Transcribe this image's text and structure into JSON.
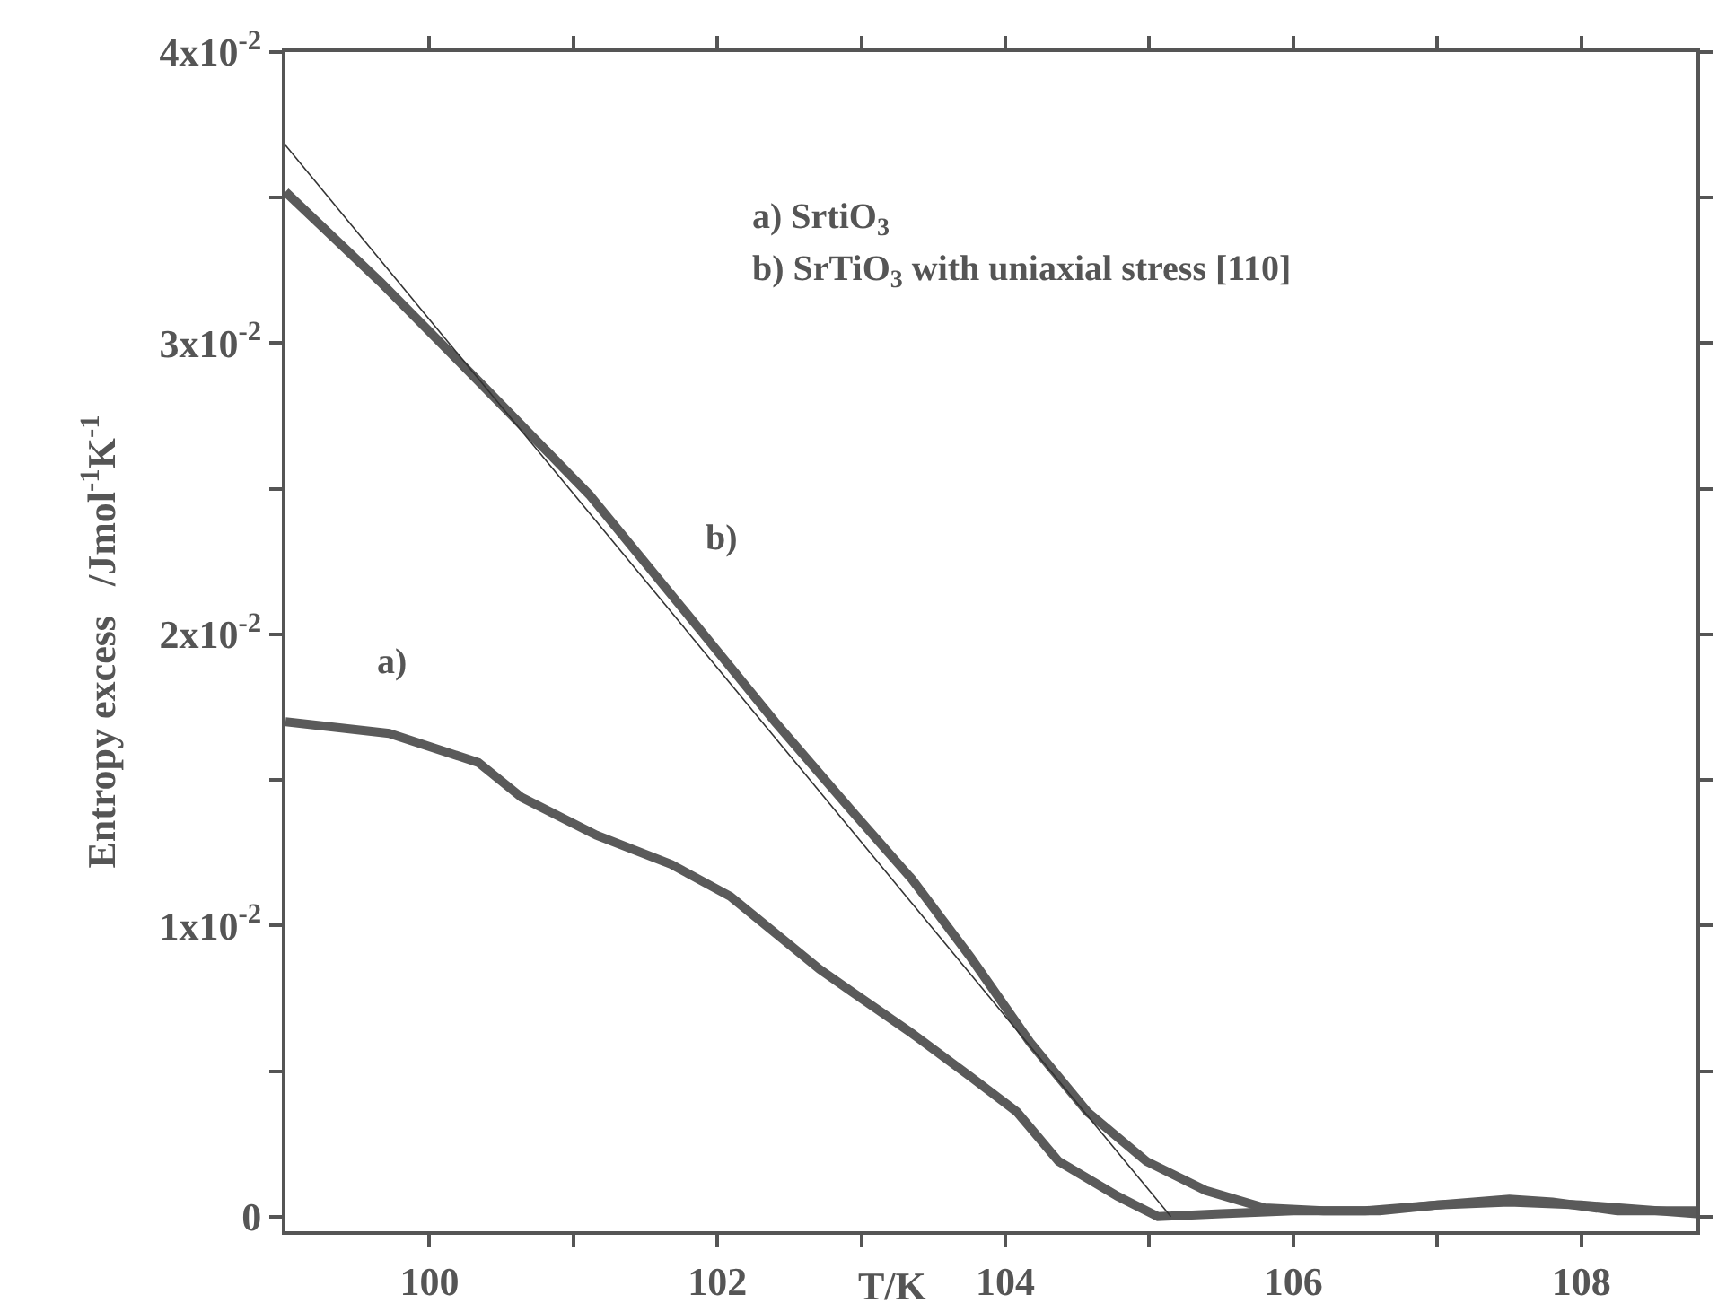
{
  "chart_data": {
    "type": "line",
    "xlabel": "T/K",
    "ylabel": "Entropy excess   /Jmol$^{-1}$K$^{-1}$",
    "xlim": [
      99,
      108.8
    ],
    "xticks": [
      100,
      {
        "value": 101,
        "label": null
      },
      102,
      {
        "value": 103,
        "label": null
      },
      104,
      {
        "value": 105,
        "label": null
      },
      106,
      {
        "value": 107,
        "label": null
      },
      108
    ],
    "ylim": [
      -0.0005,
      0.04
    ],
    "yticks": [
      {
        "value": 0,
        "label": "0"
      },
      {
        "value": 0.005,
        "label": null
      },
      {
        "value": 0.01,
        "label": "1x10$^{-2}$"
      },
      {
        "value": 0.015,
        "label": null
      },
      {
        "value": 0.02,
        "label": "2x10$^{-2}$"
      },
      {
        "value": 0.025,
        "label": null
      },
      {
        "value": 0.03,
        "label": "3x10$^{-2}$"
      },
      {
        "value": 0.035,
        "label": null
      },
      {
        "value": 0.04,
        "label": "4x10$^{-2}$"
      }
    ],
    "marker": "none",
    "series": [
      {
        "color": "#5a5a5a",
        "x": [
          99.0,
          99.72,
          100.34,
          100.64,
          101.16,
          101.68,
          102.09,
          102.71,
          102.94,
          103.35,
          103.76,
          104.08,
          104.37,
          104.78,
          105.06,
          105.5,
          106.0,
          106.5,
          107.0,
          107.5,
          108.0,
          108.8
        ],
        "values": [
          0.017,
          0.0166,
          0.0156,
          0.0144,
          0.0131,
          0.0121,
          0.011,
          0.0085,
          0.0077,
          0.0063,
          0.0048,
          0.0036,
          0.0019,
          0.0007,
          0.0,
          0.0001,
          0.0002,
          0.0002,
          0.0004,
          0.0005,
          0.0004,
          0.0001
        ]
      },
      {
        "color": "#5a5a5a",
        "x": [
          99.0,
          99.66,
          100.34,
          101.11,
          101.79,
          102.4,
          102.94,
          103.35,
          103.76,
          104.17,
          104.57,
          104.98,
          105.39,
          105.8,
          106.21,
          106.6,
          107.0,
          107.5,
          107.8,
          108.25,
          108.8
        ],
        "values": [
          0.0352,
          0.0321,
          0.0287,
          0.0248,
          0.0207,
          0.017,
          0.0139,
          0.0116,
          0.0089,
          0.006,
          0.0036,
          0.0019,
          0.0009,
          0.0003,
          0.0002,
          0.0002,
          0.0004,
          0.0006,
          0.0005,
          0.0002,
          0.0002
        ]
      },
      {
        "color": "#333333",
        "line_style": "solid",
        "x": [
          99.0,
          105.15
        ],
        "values": [
          0.0368,
          0.0
        ]
      }
    ],
    "annotations": [
      "a) SrtiO$_{3}$",
      "b) SrTiO$_{3}$ with uniaxial stress [110]",
      "a)",
      "b)"
    ]
  }
}
